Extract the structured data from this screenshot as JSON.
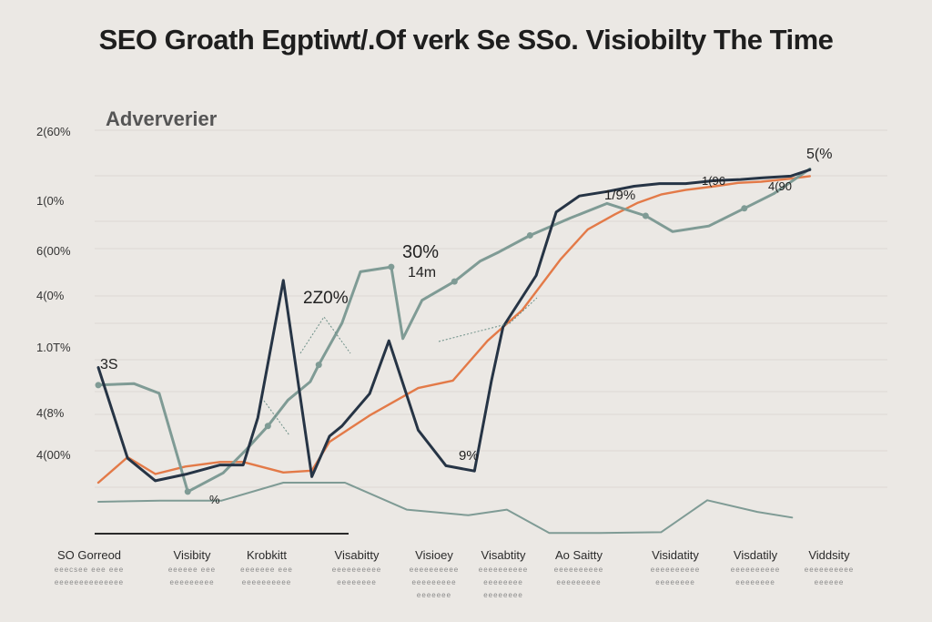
{
  "chart_data": {
    "type": "line",
    "title": "SEO Groath Egptiwt/.Of verk Se SSo. Visiobilty The Time",
    "legend_label": "Adververier",
    "y_tick_labels": [
      "2(60%",
      "1(0%",
      "6(00%",
      "4(0%",
      "1.0T%",
      "4(8%",
      "4(00%"
    ],
    "x": [
      0,
      1,
      2,
      3,
      4,
      5,
      6,
      7,
      8,
      9,
      10
    ],
    "x_categories": [
      {
        "label": "SO Gorreod",
        "sub": [
          "eeecsee eee eee",
          "eeeeeeeeeeeeee"
        ]
      },
      {
        "label": "Visibity",
        "sub": [
          "eeeeee eee",
          "eeeeeeeee"
        ]
      },
      {
        "label": "Krobkitt",
        "sub": [
          "eeeeeee eee",
          "eeeeeeeeee"
        ]
      },
      {
        "label": "Visabitty",
        "sub": [
          "eeeeeeeeee",
          "eeeeeeee"
        ]
      },
      {
        "label": "Visioey",
        "sub": [
          "eeeeeeeeee",
          "eeeeeeeee",
          "eeeeeee"
        ]
      },
      {
        "label": "Visabtity",
        "sub": [
          "eeeeeeeeee",
          "eeeeeeee",
          "eeeeeeee"
        ]
      },
      {
        "label": "Ao Saitty",
        "sub": [
          "eeeeeeeeee",
          "eeeeeeeee"
        ]
      },
      {
        "label": "Visidatity",
        "sub": [
          "eeeeeeeeee",
          "eeeeeeee"
        ]
      },
      {
        "label": "Visdatily",
        "sub": [
          "eeeeeeeeee",
          "eeeeeeee"
        ]
      },
      {
        "label": "Viddsity",
        "sub": [
          "eeeeeeeeee",
          "eeeeee"
        ]
      }
    ],
    "ylim": [
      0,
      100
    ],
    "series": [
      {
        "name": "Navy",
        "color": "#263445",
        "width": 3,
        "x": [
          0.0,
          0.38,
          0.74,
          1.13,
          1.58,
          1.88,
          2.07,
          2.4,
          2.77,
          3.0,
          3.16,
          3.52,
          3.77,
          4.15,
          4.51,
          4.88,
          5.1,
          5.25,
          5.68,
          5.94,
          6.24,
          6.6,
          6.95,
          7.28,
          7.62,
          8.0,
          8.33,
          8.6,
          8.98,
          9.23
        ],
        "values": [
          44.3,
          20.1,
          14.1,
          15.8,
          18.3,
          18.3,
          30.9,
          67.5,
          15.2,
          26.0,
          28.7,
          37.3,
          51.4,
          27.6,
          18.1,
          16.7,
          40.8,
          55.1,
          68.8,
          85.7,
          90.0,
          91.2,
          92.6,
          93.3,
          93.3,
          94.1,
          94.4,
          94.8,
          95.3,
          97.0
        ]
      },
      {
        "name": "Orange",
        "color": "#e37a48",
        "width": 2.4,
        "x": [
          0.0,
          0.38,
          0.74,
          1.13,
          1.58,
          1.88,
          2.4,
          2.77,
          3.0,
          3.52,
          4.15,
          4.6,
          5.05,
          5.5,
          6.0,
          6.35,
          6.7,
          7.0,
          7.3,
          7.62,
          8.0,
          8.3,
          8.6,
          8.98,
          9.23
        ],
        "values": [
          13.6,
          20.4,
          15.9,
          17.9,
          19.1,
          19.1,
          16.3,
          16.8,
          24.5,
          31.5,
          38.8,
          40.8,
          51.4,
          59.6,
          73.2,
          81.1,
          85.1,
          88.2,
          90.4,
          91.6,
          92.6,
          93.5,
          93.8,
          94.6,
          95.3
        ]
      },
      {
        "name": "Slate",
        "color": "#7f9b95",
        "width": 3,
        "x": [
          0.0,
          0.46,
          0.79,
          1.16,
          1.62,
          1.92,
          2.2,
          2.46,
          2.75,
          2.86,
          3.16,
          3.4,
          3.8,
          3.95,
          4.2,
          4.62,
          4.95,
          5.2,
          5.6,
          6.12,
          6.6,
          7.1,
          7.45,
          7.92,
          8.38,
          8.76,
          9.23
        ],
        "values": [
          39.6,
          40.0,
          37.4,
          11.2,
          16.2,
          22.4,
          28.7,
          35.6,
          40.5,
          45.0,
          56.1,
          69.8,
          71.1,
          52.0,
          62.2,
          67.2,
          72.6,
          75.1,
          79.5,
          84.1,
          88.0,
          84.7,
          80.5,
          82.0,
          86.7,
          90.6,
          97.2
        ]
      },
      {
        "name": "Baseline",
        "color": "#7f9b95",
        "width": 2,
        "x": [
          0.0,
          0.8,
          1.6,
          2.4,
          3.2,
          4.0,
          4.8,
          5.3,
          5.85,
          6.5,
          7.3,
          7.9,
          8.55,
          9.0
        ],
        "values": [
          8.5,
          8.8,
          8.8,
          13.6,
          13.6,
          6.4,
          4.9,
          6.4,
          0.2,
          0.2,
          0.4,
          8.9,
          5.8,
          4.3
        ]
      }
    ],
    "annotations": [
      "3S",
      "2Z0%",
      "30%",
      "14m",
      "9%",
      "1/9%",
      "1(96",
      "4(90",
      "5(%",
      "%"
    ]
  }
}
